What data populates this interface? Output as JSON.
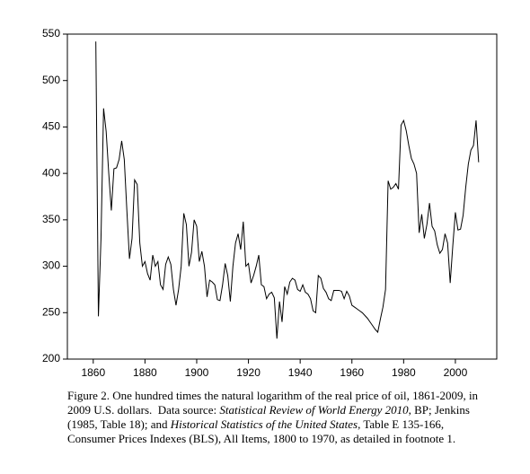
{
  "chart_data": {
    "type": "line",
    "x": [
      1861,
      1862,
      1863,
      1864,
      1865,
      1866,
      1867,
      1868,
      1869,
      1870,
      1871,
      1872,
      1873,
      1874,
      1875,
      1876,
      1877,
      1878,
      1879,
      1880,
      1881,
      1882,
      1883,
      1884,
      1885,
      1886,
      1887,
      1888,
      1889,
      1890,
      1891,
      1892,
      1893,
      1894,
      1895,
      1896,
      1897,
      1898,
      1899,
      1900,
      1901,
      1902,
      1903,
      1904,
      1905,
      1906,
      1907,
      1908,
      1909,
      1910,
      1911,
      1912,
      1913,
      1914,
      1915,
      1916,
      1917,
      1918,
      1919,
      1920,
      1921,
      1922,
      1923,
      1924,
      1925,
      1926,
      1927,
      1928,
      1929,
      1930,
      1931,
      1932,
      1933,
      1934,
      1935,
      1936,
      1937,
      1938,
      1939,
      1940,
      1941,
      1942,
      1943,
      1944,
      1945,
      1946,
      1947,
      1948,
      1949,
      1950,
      1951,
      1952,
      1953,
      1954,
      1955,
      1956,
      1957,
      1958,
      1959,
      1960,
      1961,
      1962,
      1963,
      1964,
      1965,
      1966,
      1967,
      1968,
      1969,
      1970,
      1971,
      1972,
      1973,
      1974,
      1975,
      1976,
      1977,
      1978,
      1979,
      1980,
      1981,
      1982,
      1983,
      1984,
      1985,
      1986,
      1987,
      1988,
      1989,
      1990,
      1991,
      1992,
      1993,
      1994,
      1995,
      1996,
      1997,
      1998,
      1999,
      2000,
      2001,
      2002,
      2003,
      2004,
      2005,
      2006,
      2007,
      2008,
      2009
    ],
    "values": [
      542,
      246,
      330,
      470,
      445,
      400,
      360,
      405,
      406,
      415,
      435,
      415,
      360,
      308,
      330,
      393,
      388,
      325,
      300,
      305,
      292,
      285,
      312,
      300,
      305,
      280,
      275,
      302,
      310,
      302,
      275,
      258,
      275,
      300,
      357,
      345,
      300,
      315,
      350,
      343,
      305,
      316,
      300,
      267,
      285,
      283,
      280,
      264,
      263,
      280,
      303,
      290,
      262,
      300,
      325,
      335,
      318,
      348,
      300,
      303,
      282,
      290,
      300,
      312,
      280,
      278,
      265,
      270,
      272,
      266,
      222,
      262,
      240,
      278,
      270,
      283,
      287,
      285,
      275,
      273,
      280,
      272,
      270,
      265,
      252,
      250,
      290,
      287,
      276,
      272,
      265,
      263,
      274,
      274,
      274,
      273,
      265,
      273,
      268,
      258,
      256,
      254,
      252,
      250,
      247,
      244,
      240,
      236,
      232,
      229,
      243,
      256,
      275,
      392,
      383,
      385,
      389,
      383,
      452,
      457,
      446,
      430,
      416,
      410,
      400,
      336,
      356,
      330,
      345,
      368,
      343,
      338,
      323,
      314,
      318,
      335,
      325,
      282,
      322,
      358,
      339,
      340,
      355,
      385,
      410,
      425,
      430,
      457,
      412
    ],
    "color": "#000000",
    "xlim": [
      1850,
      2016
    ],
    "xticks": [
      1860,
      1880,
      1900,
      1920,
      1940,
      1960,
      1980,
      2000
    ],
    "ylim": [
      200,
      550
    ],
    "yticks": [
      200,
      250,
      300,
      350,
      400,
      450,
      500,
      550
    ]
  },
  "caption": [
    [
      "Figure 2. One hundred times the natural logarithm of the real price of oil, 1861-2009, in"
    ],
    [
      "2009 U.S. dollars.  Data source: ",
      "Statistical Review of World Energy 2010",
      ", BP; Jenkins"
    ],
    [
      "(1985, Table 18); and ",
      "Historical Statistics of the United States",
      ", Table E 135-166,"
    ],
    [
      "Consumer Prices Indexes (BLS), All Items, 1800 to 1970, as detailed in footnote 1."
    ]
  ]
}
